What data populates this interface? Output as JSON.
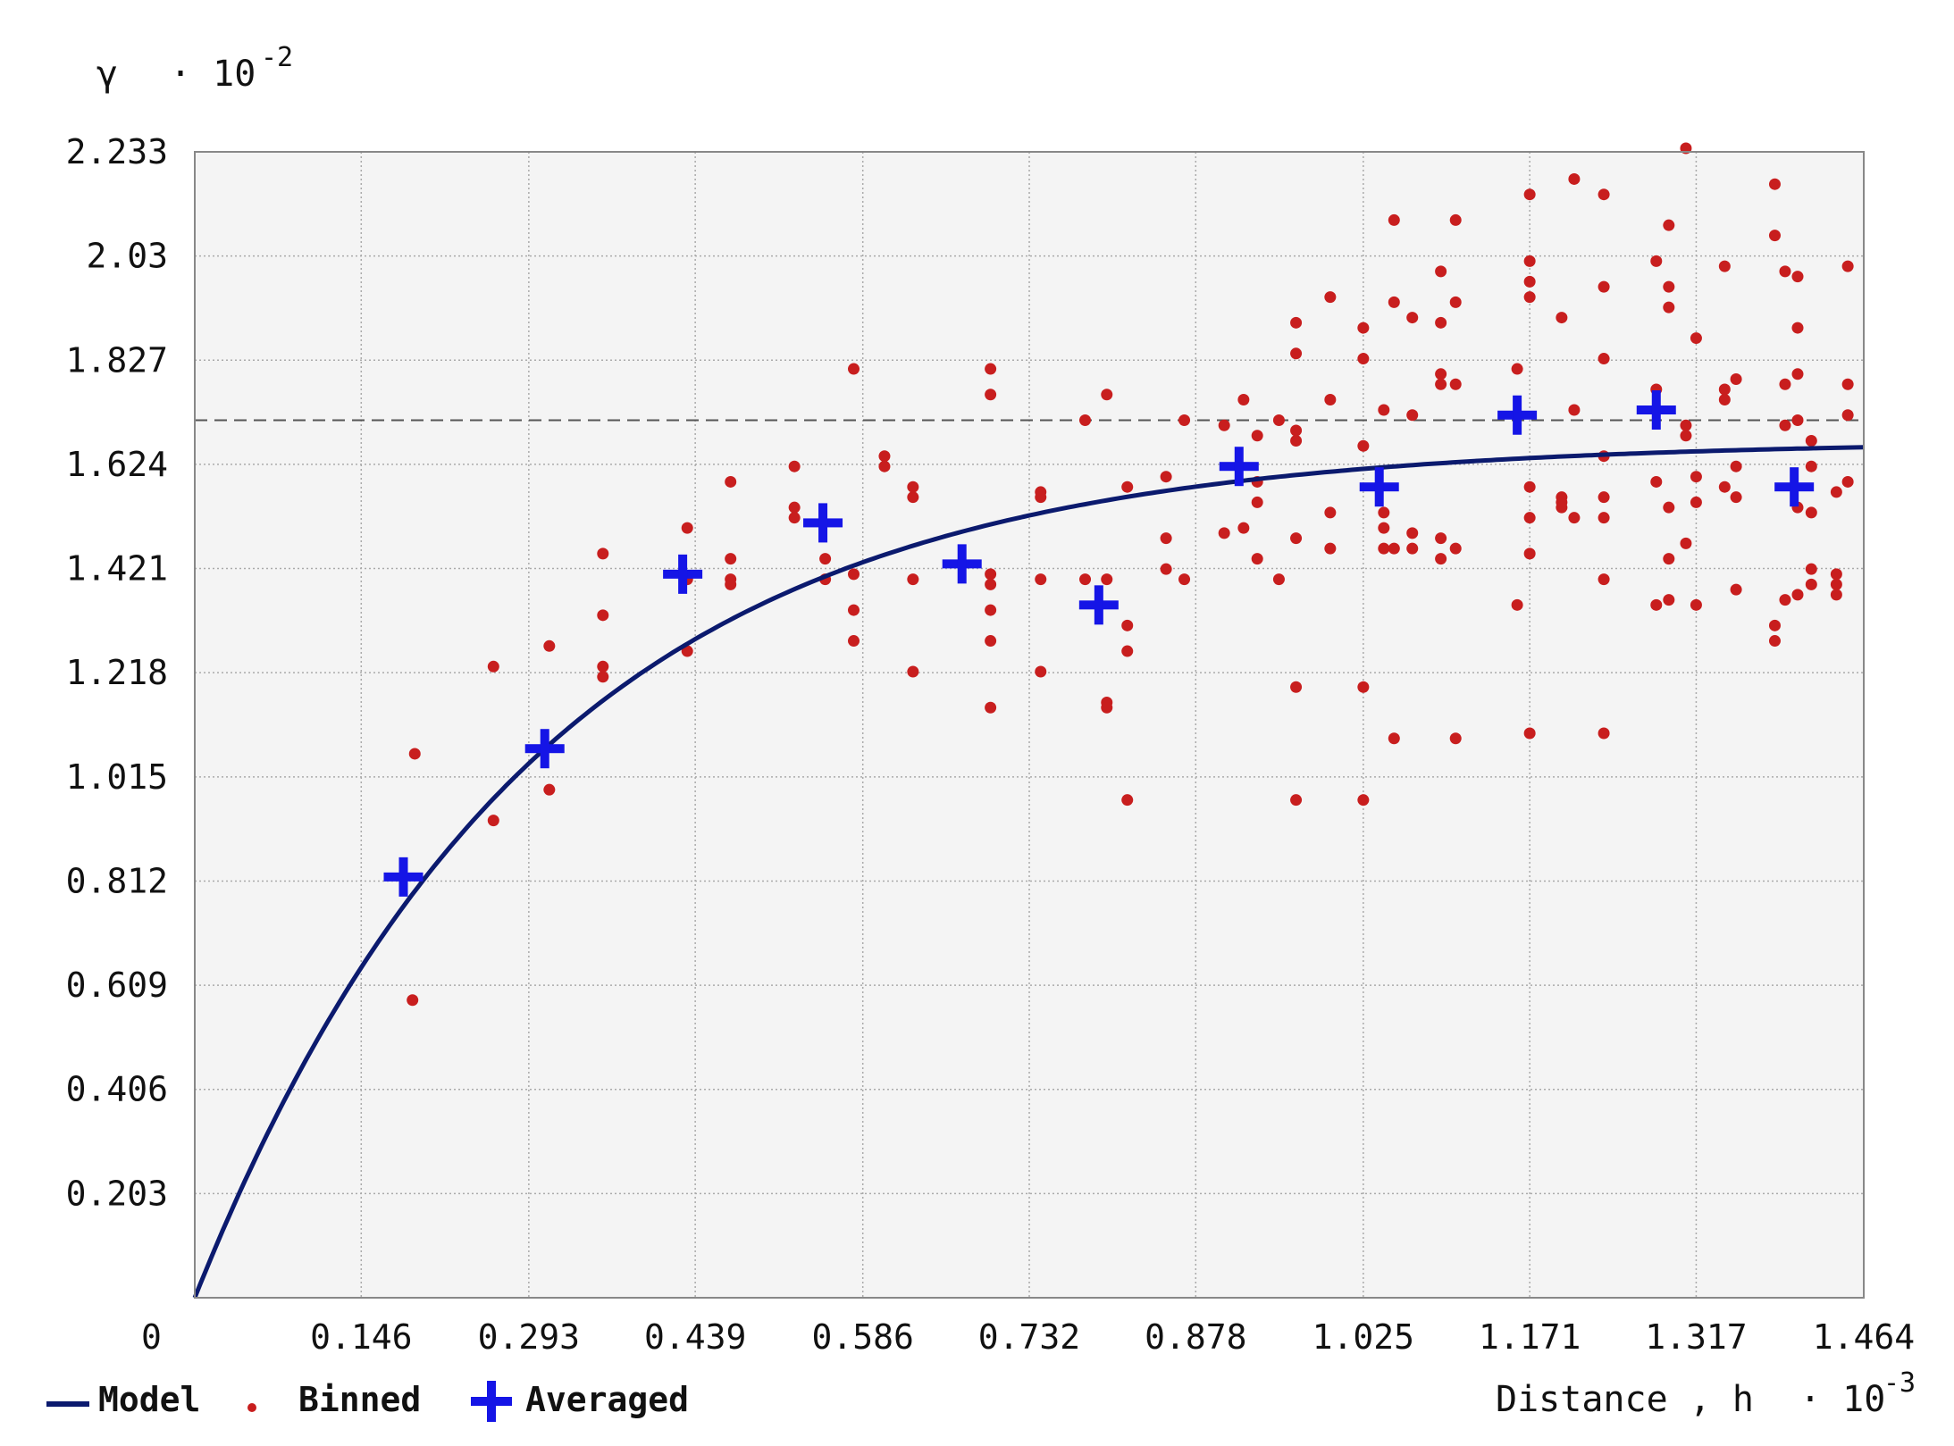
{
  "chart_data": {
    "type": "scatter",
    "y_axis": {
      "symbol": "γ",
      "multiplier": "· 10",
      "exponent": "-2"
    },
    "x_axis": {
      "label": "Distance , h",
      "multiplier": "· 10",
      "exponent": "-3"
    },
    "origin_label": "0",
    "xlim": [
      0,
      1.464
    ],
    "ylim": [
      0,
      2.233
    ],
    "x_ticks": [
      "0.146",
      "0.293",
      "0.439",
      "0.586",
      "0.732",
      "0.878",
      "1.025",
      "1.171",
      "1.317",
      "1.464"
    ],
    "y_ticks": [
      "0.203",
      "0.406",
      "0.609",
      "0.812",
      "1.015",
      "1.218",
      "1.421",
      "1.624",
      "1.827",
      "2.03",
      "2.233"
    ],
    "grid": true,
    "legend_position": "bottom-left",
    "legend": {
      "model": "Model",
      "binned": "Binned",
      "averaged": "Averaged"
    },
    "colors": {
      "model": "#0b1a6e",
      "binned": "#c81e1e",
      "averaged": "#1515e6",
      "grid": "#aaaaaa",
      "sill_line": "#555555"
    },
    "sill": 1.71,
    "model": {
      "type": "exponential",
      "nugget": 0,
      "sill": 1.67,
      "range": 0.3
    },
    "series": [
      {
        "name": "Averaged",
        "marker": "plus",
        "points": [
          [
            0.183,
            0.82
          ],
          [
            0.307,
            1.07
          ],
          [
            0.428,
            1.41
          ],
          [
            0.551,
            1.51
          ],
          [
            0.673,
            1.43
          ],
          [
            0.793,
            1.35
          ],
          [
            0.916,
            1.62
          ],
          [
            1.039,
            1.58
          ],
          [
            1.16,
            1.72
          ],
          [
            1.282,
            1.73
          ],
          [
            1.403,
            1.58
          ]
        ]
      },
      {
        "name": "Binned",
        "marker": "dot",
        "points": [
          [
            0.193,
            1.06
          ],
          [
            0.191,
            0.58
          ],
          [
            0.262,
            1.23
          ],
          [
            0.262,
            0.93
          ],
          [
            0.311,
            0.99
          ],
          [
            0.311,
            1.27
          ],
          [
            0.358,
            1.33
          ],
          [
            0.358,
            1.45
          ],
          [
            0.358,
            1.23
          ],
          [
            0.358,
            1.21
          ],
          [
            0.432,
            1.5
          ],
          [
            0.432,
            1.4
          ],
          [
            0.432,
            1.26
          ],
          [
            0.47,
            1.59
          ],
          [
            0.47,
            1.44
          ],
          [
            0.47,
            1.4
          ],
          [
            0.47,
            1.39
          ],
          [
            0.526,
            1.62
          ],
          [
            0.526,
            1.54
          ],
          [
            0.526,
            1.52
          ],
          [
            0.553,
            1.44
          ],
          [
            0.553,
            1.4
          ],
          [
            0.578,
            1.81
          ],
          [
            0.578,
            1.41
          ],
          [
            0.578,
            1.34
          ],
          [
            0.578,
            1.28
          ],
          [
            0.605,
            1.64
          ],
          [
            0.605,
            1.62
          ],
          [
            0.63,
            1.58
          ],
          [
            0.63,
            1.56
          ],
          [
            0.63,
            1.4
          ],
          [
            0.63,
            1.22
          ],
          [
            0.698,
            1.81
          ],
          [
            0.698,
            1.76
          ],
          [
            0.698,
            1.41
          ],
          [
            0.698,
            1.39
          ],
          [
            0.698,
            1.34
          ],
          [
            0.698,
            1.28
          ],
          [
            0.698,
            1.15
          ],
          [
            0.742,
            1.57
          ],
          [
            0.742,
            1.56
          ],
          [
            0.742,
            1.4
          ],
          [
            0.742,
            1.22
          ],
          [
            0.781,
            1.71
          ],
          [
            0.781,
            1.4
          ],
          [
            0.8,
            1.76
          ],
          [
            0.8,
            1.4
          ],
          [
            0.8,
            1.16
          ],
          [
            0.8,
            1.15
          ],
          [
            0.818,
            1.58
          ],
          [
            0.818,
            1.31
          ],
          [
            0.818,
            1.26
          ],
          [
            0.818,
            0.97
          ],
          [
            0.852,
            1.6
          ],
          [
            0.852,
            1.48
          ],
          [
            0.852,
            1.42
          ],
          [
            0.868,
            1.71
          ],
          [
            0.868,
            1.4
          ],
          [
            0.903,
            1.7
          ],
          [
            0.903,
            1.49
          ],
          [
            0.92,
            1.75
          ],
          [
            0.92,
            1.5
          ],
          [
            0.932,
            1.68
          ],
          [
            0.932,
            1.59
          ],
          [
            0.932,
            1.55
          ],
          [
            0.932,
            1.44
          ],
          [
            0.951,
            1.71
          ],
          [
            0.951,
            1.4
          ],
          [
            0.966,
            1.9
          ],
          [
            0.966,
            1.84
          ],
          [
            0.966,
            1.69
          ],
          [
            0.966,
            1.67
          ],
          [
            0.966,
            1.48
          ],
          [
            0.966,
            1.19
          ],
          [
            0.966,
            0.97
          ],
          [
            0.996,
            1.95
          ],
          [
            0.996,
            1.75
          ],
          [
            0.996,
            1.53
          ],
          [
            0.996,
            1.46
          ],
          [
            1.025,
            1.89
          ],
          [
            1.025,
            1.83
          ],
          [
            1.025,
            1.66
          ],
          [
            1.025,
            1.19
          ],
          [
            1.025,
            0.97
          ],
          [
            1.043,
            1.73
          ],
          [
            1.043,
            1.53
          ],
          [
            1.043,
            1.5
          ],
          [
            1.043,
            1.46
          ],
          [
            1.052,
            2.1
          ],
          [
            1.052,
            1.94
          ],
          [
            1.052,
            1.09
          ],
          [
            1.052,
            1.46
          ],
          [
            1.068,
            1.91
          ],
          [
            1.068,
            1.72
          ],
          [
            1.068,
            1.49
          ],
          [
            1.068,
            1.46
          ],
          [
            1.093,
            2.0
          ],
          [
            1.093,
            1.9
          ],
          [
            1.093,
            1.8
          ],
          [
            1.093,
            1.78
          ],
          [
            1.093,
            1.48
          ],
          [
            1.093,
            1.44
          ],
          [
            1.106,
            2.1
          ],
          [
            1.106,
            1.94
          ],
          [
            1.106,
            1.78
          ],
          [
            1.106,
            1.46
          ],
          [
            1.106,
            1.09
          ],
          [
            1.16,
            1.81
          ],
          [
            1.16,
            1.35
          ],
          [
            1.171,
            2.15
          ],
          [
            1.171,
            2.02
          ],
          [
            1.171,
            1.98
          ],
          [
            1.171,
            1.95
          ],
          [
            1.171,
            1.58
          ],
          [
            1.171,
            1.52
          ],
          [
            1.171,
            1.45
          ],
          [
            1.171,
            1.1
          ],
          [
            1.199,
            1.91
          ],
          [
            1.199,
            1.56
          ],
          [
            1.199,
            1.55
          ],
          [
            1.199,
            1.54
          ],
          [
            1.21,
            2.18
          ],
          [
            1.21,
            1.73
          ],
          [
            1.21,
            1.52
          ],
          [
            1.236,
            2.15
          ],
          [
            1.236,
            1.97
          ],
          [
            1.236,
            1.83
          ],
          [
            1.236,
            1.64
          ],
          [
            1.236,
            1.56
          ],
          [
            1.236,
            1.52
          ],
          [
            1.236,
            1.4
          ],
          [
            1.236,
            1.1
          ],
          [
            1.282,
            2.02
          ],
          [
            1.282,
            1.77
          ],
          [
            1.282,
            1.59
          ],
          [
            1.282,
            1.35
          ],
          [
            1.293,
            2.09
          ],
          [
            1.293,
            1.97
          ],
          [
            1.293,
            1.93
          ],
          [
            1.293,
            1.54
          ],
          [
            1.293,
            1.44
          ],
          [
            1.293,
            1.36
          ],
          [
            1.308,
            2.24
          ],
          [
            1.308,
            1.7
          ],
          [
            1.308,
            1.68
          ],
          [
            1.308,
            1.47
          ],
          [
            1.317,
            1.87
          ],
          [
            1.317,
            1.6
          ],
          [
            1.317,
            1.55
          ],
          [
            1.317,
            1.35
          ],
          [
            1.342,
            2.01
          ],
          [
            1.342,
            1.77
          ],
          [
            1.342,
            1.75
          ],
          [
            1.342,
            1.58
          ],
          [
            1.352,
            1.79
          ],
          [
            1.352,
            1.62
          ],
          [
            1.352,
            1.56
          ],
          [
            1.352,
            1.38
          ],
          [
            1.386,
            2.17
          ],
          [
            1.386,
            2.07
          ],
          [
            1.386,
            1.31
          ],
          [
            1.386,
            1.28
          ],
          [
            1.395,
            2.0
          ],
          [
            1.395,
            1.78
          ],
          [
            1.395,
            1.7
          ],
          [
            1.395,
            1.36
          ],
          [
            1.406,
            1.99
          ],
          [
            1.406,
            1.89
          ],
          [
            1.406,
            1.8
          ],
          [
            1.406,
            1.71
          ],
          [
            1.406,
            1.54
          ],
          [
            1.406,
            1.37
          ],
          [
            1.418,
            1.67
          ],
          [
            1.418,
            1.62
          ],
          [
            1.418,
            1.53
          ],
          [
            1.418,
            1.42
          ],
          [
            1.418,
            1.39
          ],
          [
            1.44,
            1.41
          ],
          [
            1.44,
            1.39
          ],
          [
            1.44,
            1.37
          ],
          [
            1.44,
            1.57
          ],
          [
            1.45,
            2.01
          ],
          [
            1.45,
            1.78
          ],
          [
            1.45,
            1.72
          ],
          [
            1.45,
            1.59
          ]
        ]
      }
    ]
  }
}
